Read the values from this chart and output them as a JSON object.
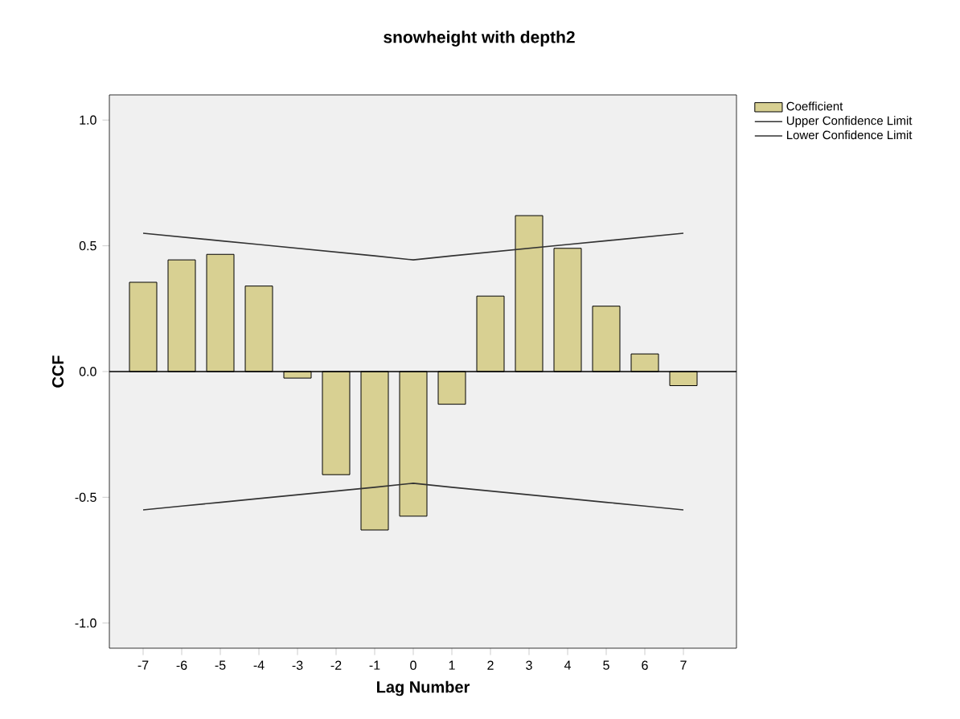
{
  "chart_data": {
    "type": "bar",
    "title": "snowheight with depth2",
    "xlabel": "Lag Number",
    "ylabel": "CCF",
    "categories": [
      "-7",
      "-6",
      "-5",
      "-4",
      "-3",
      "-2",
      "-1",
      "0",
      "1",
      "2",
      "3",
      "4",
      "5",
      "6",
      "7"
    ],
    "series": [
      {
        "name": "Coefficient",
        "color": "#d8d092",
        "values": [
          0.355,
          0.444,
          0.466,
          0.34,
          -0.026,
          -0.41,
          -0.63,
          -0.575,
          -0.13,
          0.3,
          0.62,
          0.49,
          0.26,
          0.07,
          -0.056
        ]
      },
      {
        "name": "Upper Confidence Limit",
        "type": "line",
        "color": "#333333",
        "values": [
          0.55,
          0.535,
          0.52,
          0.505,
          0.49,
          0.475,
          0.46,
          0.444,
          0.46,
          0.475,
          0.49,
          0.505,
          0.52,
          0.535,
          0.55
        ]
      },
      {
        "name": "Lower Confidence Limit",
        "type": "line",
        "color": "#333333",
        "values": [
          -0.55,
          -0.535,
          -0.52,
          -0.505,
          -0.49,
          -0.475,
          -0.46,
          -0.444,
          -0.46,
          -0.475,
          -0.49,
          -0.505,
          -0.52,
          -0.535,
          -0.55
        ]
      }
    ],
    "ylim": [
      -1.1,
      1.1
    ],
    "yticks": [
      {
        "value": -1.0,
        "label": "-1.0"
      },
      {
        "value": -0.5,
        "label": "-0.5"
      },
      {
        "value": 0.0,
        "label": "0.0"
      },
      {
        "value": 0.5,
        "label": "0.5"
      },
      {
        "value": 1.0,
        "label": "1.0"
      }
    ],
    "ref_lines": [
      {
        "axis": "y",
        "value": 0,
        "color": "#000000"
      }
    ],
    "legend": "top right",
    "grid": false
  }
}
